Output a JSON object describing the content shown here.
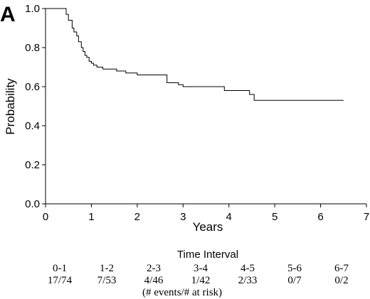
{
  "chart_data": {
    "type": "line",
    "panel_label": "A",
    "xlabel": "Years",
    "ylabel": "Probability",
    "xlim": [
      0,
      7
    ],
    "ylim": [
      0,
      1
    ],
    "x_ticks": [
      0,
      1,
      2,
      3,
      4,
      5,
      6,
      7
    ],
    "y_ticks": [
      "0.0",
      "0.2",
      "0.4",
      "0.6",
      "0.8",
      "1.0"
    ],
    "grid": false,
    "series": [
      {
        "step": true,
        "x": [
          0.0,
          0.45,
          0.5,
          0.58,
          0.62,
          0.68,
          0.72,
          0.78,
          0.82,
          0.86,
          0.9,
          0.95,
          1.0,
          1.05,
          1.12,
          1.25,
          1.35,
          1.55,
          1.75,
          2.0,
          2.3,
          2.6,
          2.65,
          2.9,
          3.0,
          3.55,
          3.9,
          4.0,
          4.45,
          4.55,
          6.5
        ],
        "y": [
          1.0,
          0.97,
          0.94,
          0.9,
          0.88,
          0.86,
          0.83,
          0.8,
          0.78,
          0.76,
          0.75,
          0.73,
          0.72,
          0.71,
          0.7,
          0.69,
          0.69,
          0.68,
          0.67,
          0.66,
          0.66,
          0.66,
          0.62,
          0.61,
          0.6,
          0.6,
          0.58,
          0.58,
          0.56,
          0.53,
          0.53
        ]
      }
    ]
  },
  "table": {
    "title": "Time Interval",
    "intervals": [
      "0-1",
      "1-2",
      "2-3",
      "3-4",
      "4-5",
      "5-6",
      "6-7"
    ],
    "ratios": [
      "17/74",
      "7/53",
      "4/46",
      "1/42",
      "2/33",
      "0/7",
      "0/2"
    ],
    "footnote": "(# events/# at risk)"
  }
}
